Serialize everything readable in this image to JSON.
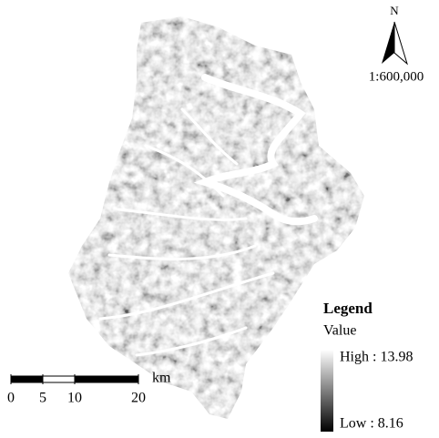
{
  "north": "N",
  "map_scale": "1:600,000",
  "legend": {
    "title": "Legend",
    "field": "Value",
    "high": "High : 13.98",
    "low": "Low : 8.16"
  },
  "scale_bar": {
    "unit": "km",
    "ticks": [
      0,
      5,
      10,
      20
    ]
  }
}
